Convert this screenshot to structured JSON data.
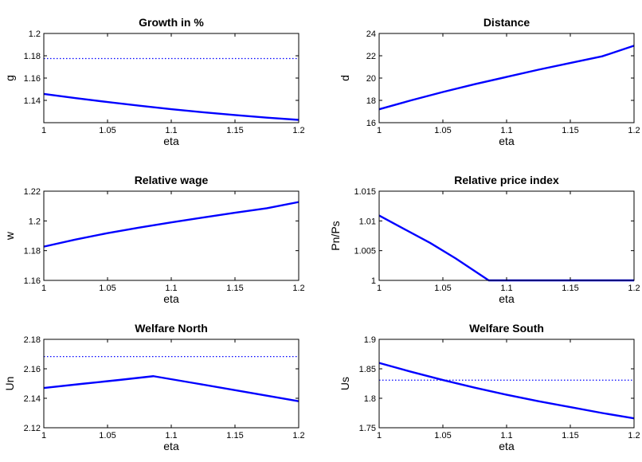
{
  "chart_data": [
    {
      "type": "line",
      "title": "Growth in %",
      "xlabel": "eta",
      "ylabel": "g",
      "xlim": [
        1,
        1.2
      ],
      "ylim": [
        1.12,
        1.2
      ],
      "xticks": [
        1,
        1.05,
        1.1,
        1.15,
        1.2
      ],
      "xtick_labels": [
        "1",
        "1.05",
        "1.1",
        "1.15",
        "1.2"
      ],
      "yticks": [
        1.14,
        1.16,
        1.18,
        1.2
      ],
      "ytick_labels": [
        "1.14",
        "1.16",
        "1.18",
        "1.2"
      ],
      "grid": false,
      "series": [
        {
          "style": "solid",
          "color": "#0000ff",
          "x": [
            1,
            1.025,
            1.05,
            1.075,
            1.1,
            1.125,
            1.15,
            1.175,
            1.2
          ],
          "y": [
            1.1458,
            1.142,
            1.1385,
            1.1352,
            1.1321,
            1.1293,
            1.1268,
            1.1245,
            1.1225
          ]
        },
        {
          "style": "dotted",
          "color": "#0000ff",
          "x": [
            1,
            1.2
          ],
          "y": [
            1.1775,
            1.1775
          ]
        }
      ]
    },
    {
      "type": "line",
      "title": "Distance",
      "xlabel": "eta",
      "ylabel": "d",
      "xlim": [
        1,
        1.2
      ],
      "ylim": [
        16,
        24
      ],
      "xticks": [
        1,
        1.05,
        1.1,
        1.15,
        1.2
      ],
      "xtick_labels": [
        "1",
        "1.05",
        "1.1",
        "1.15",
        "1.2"
      ],
      "yticks": [
        16,
        18,
        20,
        22,
        24
      ],
      "ytick_labels": [
        "16",
        "18",
        "20",
        "22",
        "24"
      ],
      "grid": false,
      "series": [
        {
          "style": "solid",
          "color": "#0000ff",
          "x": [
            1,
            1.025,
            1.05,
            1.075,
            1.1,
            1.125,
            1.15,
            1.175,
            1.2
          ],
          "y": [
            17.2,
            18.0,
            18.75,
            19.45,
            20.1,
            20.75,
            21.35,
            21.95,
            22.9
          ]
        }
      ]
    },
    {
      "type": "line",
      "title": "Relative wage",
      "xlabel": "eta",
      "ylabel": "w",
      "xlim": [
        1,
        1.2
      ],
      "ylim": [
        1.16,
        1.22
      ],
      "xticks": [
        1,
        1.05,
        1.1,
        1.15,
        1.2
      ],
      "xtick_labels": [
        "1",
        "1.05",
        "1.1",
        "1.15",
        "1.2"
      ],
      "yticks": [
        1.16,
        1.18,
        1.2,
        1.22
      ],
      "ytick_labels": [
        "1.16",
        "1.18",
        "1.2",
        "1.22"
      ],
      "grid": false,
      "series": [
        {
          "style": "solid",
          "color": "#0000ff",
          "x": [
            1,
            1.025,
            1.05,
            1.075,
            1.1,
            1.125,
            1.15,
            1.175,
            1.2
          ],
          "y": [
            1.1827,
            1.1875,
            1.1918,
            1.1955,
            1.199,
            1.2023,
            1.2055,
            1.2085,
            1.2127
          ]
        }
      ]
    },
    {
      "type": "line",
      "title": "Relative price index",
      "xlabel": "eta",
      "ylabel": "Pn/Ps",
      "xlim": [
        1,
        1.2
      ],
      "ylim": [
        1,
        1.015
      ],
      "xticks": [
        1,
        1.05,
        1.1,
        1.15,
        1.2
      ],
      "xtick_labels": [
        "1",
        "1.05",
        "1.1",
        "1.15",
        "1.2"
      ],
      "yticks": [
        1,
        1.005,
        1.01,
        1.015
      ],
      "ytick_labels": [
        "1",
        "1.005",
        "1.01",
        "1.015"
      ],
      "grid": false,
      "series": [
        {
          "style": "solid",
          "color": "#0000ff",
          "x": [
            1,
            1.02,
            1.04,
            1.06,
            1.086,
            1.1,
            1.15,
            1.2
          ],
          "y": [
            1.0109,
            1.0086,
            1.0063,
            1.0037,
            1.0,
            1.0,
            1.0,
            1.0
          ]
        }
      ]
    },
    {
      "type": "line",
      "title": "Welfare North",
      "xlabel": "eta",
      "ylabel": "Un",
      "xlim": [
        1,
        1.2
      ],
      "ylim": [
        2.12,
        2.18
      ],
      "xticks": [
        1,
        1.05,
        1.1,
        1.15,
        1.2
      ],
      "xtick_labels": [
        "1",
        "1.05",
        "1.1",
        "1.15",
        "1.2"
      ],
      "yticks": [
        2.12,
        2.14,
        2.16,
        2.18
      ],
      "ytick_labels": [
        "2.12",
        "2.14",
        "2.16",
        "2.18"
      ],
      "grid": false,
      "series": [
        {
          "style": "solid",
          "color": "#0000ff",
          "x": [
            1,
            1.03,
            1.06,
            1.086,
            1.12,
            1.16,
            1.2
          ],
          "y": [
            2.147,
            2.1498,
            2.1525,
            2.155,
            2.15,
            2.144,
            2.138
          ]
        },
        {
          "style": "dotted",
          "color": "#0000ff",
          "x": [
            1,
            1.2
          ],
          "y": [
            2.1683,
            2.1683
          ]
        }
      ]
    },
    {
      "type": "line",
      "title": "Welfare South",
      "xlabel": "eta",
      "ylabel": "Us",
      "xlim": [
        1,
        1.2
      ],
      "ylim": [
        1.75,
        1.9
      ],
      "xticks": [
        1,
        1.05,
        1.1,
        1.15,
        1.2
      ],
      "xtick_labels": [
        "1",
        "1.05",
        "1.1",
        "1.15",
        "1.2"
      ],
      "yticks": [
        1.75,
        1.8,
        1.85,
        1.9
      ],
      "ytick_labels": [
        "1.75",
        "1.8",
        "1.85",
        "1.9"
      ],
      "grid": false,
      "series": [
        {
          "style": "solid",
          "color": "#0000ff",
          "x": [
            1,
            1.025,
            1.05,
            1.075,
            1.1,
            1.125,
            1.15,
            1.175,
            1.2
          ],
          "y": [
            1.86,
            1.845,
            1.831,
            1.818,
            1.806,
            1.795,
            1.785,
            1.775,
            1.766
          ]
        },
        {
          "style": "dotted",
          "color": "#0000ff",
          "x": [
            1,
            1.2
          ],
          "y": [
            1.8307,
            1.8307
          ]
        }
      ]
    }
  ]
}
